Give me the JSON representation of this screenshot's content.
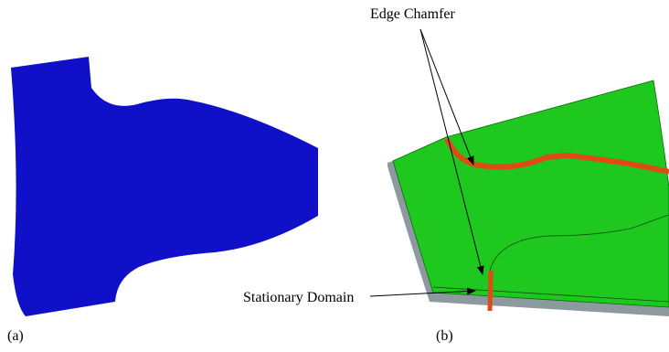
{
  "labels": {
    "edge_chamfer": "Edge Chamfer",
    "stationary_domain": "Stationary Domain",
    "panel_a": "(a)",
    "panel_b": "(b)"
  }
}
